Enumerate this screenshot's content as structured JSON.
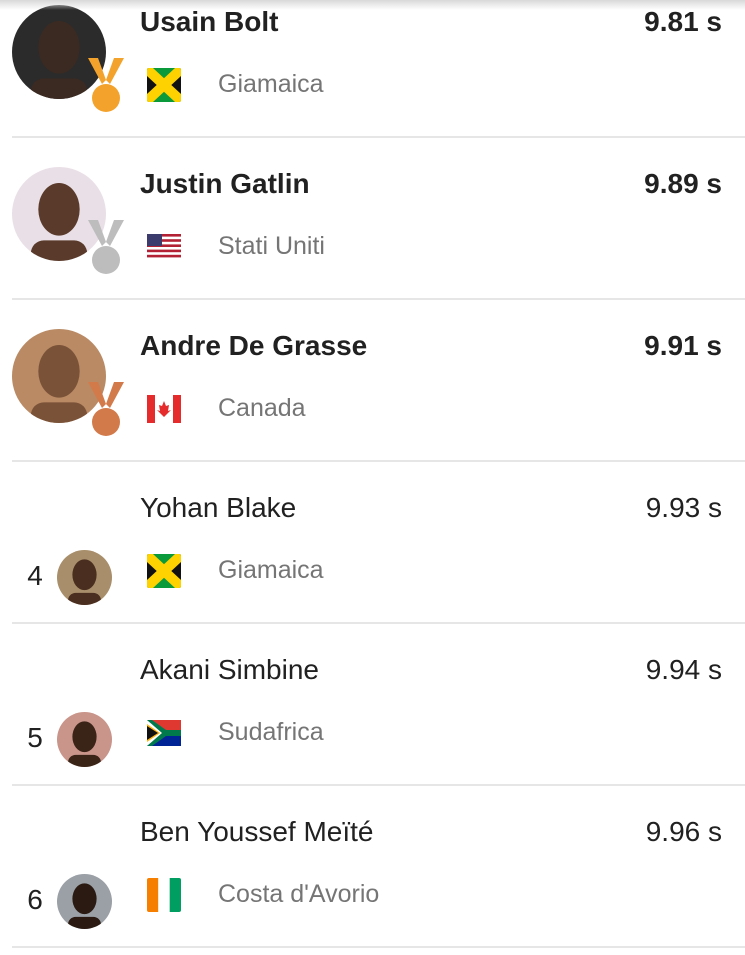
{
  "colors": {
    "gold": "#f3a32c",
    "silver": "#bdbdbd",
    "bronze": "#d27a4a",
    "divider": "#e6e6e6"
  },
  "results": [
    {
      "rank": "1",
      "name": "Usain Bolt",
      "country": "Giamaica",
      "time": "9.81 s",
      "medal": "gold",
      "flag": "jamaica",
      "avatar_tone": "#3b2a22",
      "avatar_bg": "#2b2b2b"
    },
    {
      "rank": "2",
      "name": "Justin Gatlin",
      "country": "Stati Uniti",
      "time": "9.89 s",
      "medal": "silver",
      "flag": "usa",
      "avatar_tone": "#5a3a2a",
      "avatar_bg": "#e9dfe6"
    },
    {
      "rank": "3",
      "name": "Andre De Grasse",
      "country": "Canada",
      "time": "9.91 s",
      "medal": "bronze",
      "flag": "canada",
      "avatar_tone": "#7a5238",
      "avatar_bg": "#b98a64"
    },
    {
      "rank": "4",
      "name": "Yohan Blake",
      "country": "Giamaica",
      "time": "9.93 s",
      "medal": null,
      "flag": "jamaica",
      "avatar_tone": "#4a2e20",
      "avatar_bg": "#a88e6a"
    },
    {
      "rank": "5",
      "name": "Akani Simbine",
      "country": "Sudafrica",
      "time": "9.94 s",
      "medal": null,
      "flag": "south-africa",
      "avatar_tone": "#3a2418",
      "avatar_bg": "#c9948a"
    },
    {
      "rank": "6",
      "name": "Ben Youssef Meïté",
      "country": "Costa d'Avorio",
      "time": "9.96 s",
      "medal": null,
      "flag": "ivory-coast",
      "avatar_tone": "#2a1a12",
      "avatar_bg": "#9aa0a6"
    }
  ]
}
